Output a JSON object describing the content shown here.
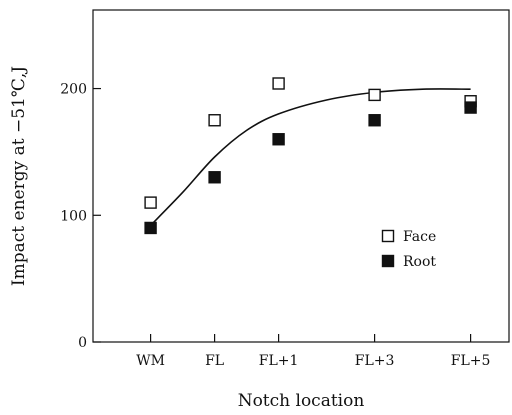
{
  "chart_data": {
    "type": "scatter",
    "xlabel": "Notch location",
    "ylabel": "Impact energy at −51℃,J",
    "categories": [
      "WM",
      "FL",
      "FL+1",
      "FL+3",
      "FL+5"
    ],
    "x_positions": [
      0,
      1,
      2,
      3.5,
      5
    ],
    "x_range": [
      -0.9,
      5.6
    ],
    "ylim": [
      0,
      262
    ],
    "y_ticks": [
      0,
      100,
      200
    ],
    "grid": false,
    "legend_position": "right-middle",
    "series": [
      {
        "name": "Face",
        "marker": "open-square",
        "color": "#111111",
        "values": [
          110,
          175,
          204,
          195,
          190
        ]
      },
      {
        "name": "Root",
        "marker": "filled-square",
        "color": "#111111",
        "values": [
          90,
          130,
          160,
          175,
          185
        ]
      }
    ],
    "trend_line": {
      "x": [
        0,
        0.5,
        1,
        1.5,
        2,
        2.75,
        3.5,
        4.25,
        5
      ],
      "y": [
        92,
        118,
        146,
        167,
        180,
        191,
        197,
        199.5,
        199.5
      ]
    }
  }
}
